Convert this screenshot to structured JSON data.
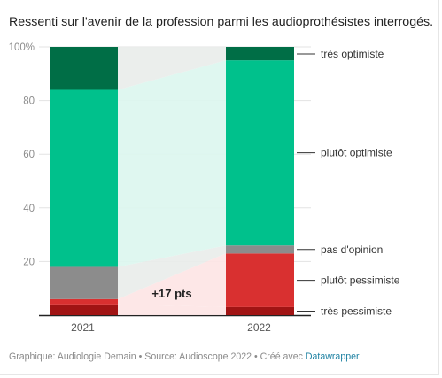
{
  "title": "Ressenti sur l'avenir de la profession parmi les audioprothésistes interrogés.",
  "footer": {
    "text": "Graphique: Audiologie Demain • Source: Audioscope 2022 • Créé avec",
    "link": "Datawrapper"
  },
  "chart_data": {
    "type": "bar",
    "stacked": true,
    "categories": [
      "2021",
      "2022"
    ],
    "ylim": [
      0,
      100
    ],
    "yticks": [
      0,
      20,
      40,
      60,
      80,
      100
    ],
    "ytick_labels": [
      "",
      "20",
      "40",
      "60",
      "80",
      "100%"
    ],
    "grid": true,
    "series": [
      {
        "name": "très pessimiste",
        "values": [
          4,
          3
        ],
        "color": "#a11414"
      },
      {
        "name": "plutôt pessimiste",
        "values": [
          2,
          20
        ],
        "color": "#d93030"
      },
      {
        "name": "pas d'opinion",
        "values": [
          12,
          3
        ],
        "color": "#8c8c8c"
      },
      {
        "name": "plutôt optimiste",
        "values": [
          66,
          69
        ],
        "color": "#00c18c"
      },
      {
        "name": "très optimiste",
        "values": [
          16,
          5
        ],
        "color": "#006e46"
      }
    ],
    "annotation": "+17 pts",
    "legend_position": "right"
  }
}
